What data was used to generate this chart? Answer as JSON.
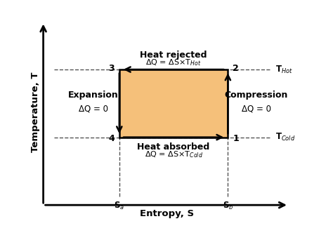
{
  "bg_color": "#ffffff",
  "rect_color": "#f5c07a",
  "rect_edge_color": "#000000",
  "Sa": 0.3,
  "Sb": 0.8,
  "T_cold": 0.35,
  "T_hot": 0.75,
  "xlim": [
    -0.05,
    1.1
  ],
  "ylim": [
    -0.05,
    1.05
  ],
  "xlabel": "Entropy, S",
  "ylabel": "Temperature, T",
  "Sa_label": "S$_a$",
  "Sb_label": "S$_b$",
  "THot_label": "T$_{Hot}$",
  "TCold_label": "T$_{Cold}$",
  "top_label_line1": "Heat rejected",
  "top_label_line2": "ΔQ = ΔS×T$_{Hot}$",
  "bottom_label_line1": "Heat absorbed",
  "bottom_label_line2": "ΔQ = ΔS×T$_{Cold}$",
  "left_label_line1": "Expansion",
  "left_label_line2": "ΔQ = 0",
  "right_label_line1": "Compression",
  "right_label_line2": "ΔQ = 0",
  "arrow_color": "#000000",
  "dashed_color": "#555555",
  "font_size_labels": 8.5,
  "font_size_axis_labels": 9.5,
  "font_size_point": 9
}
